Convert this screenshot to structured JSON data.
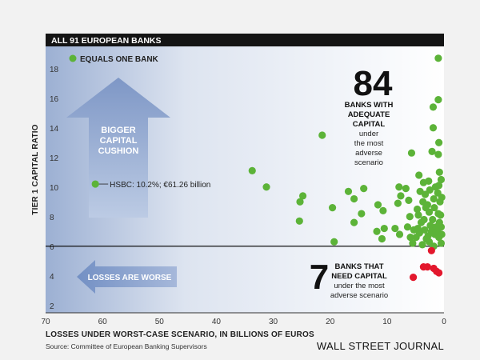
{
  "chart_data": {
    "type": "scatter",
    "title": "ALL 91 EUROPEAN BANKS",
    "ylabel": "TIER 1 CAPITAL RATIO",
    "xlabel": "LOSSES UNDER WORST-CASE SCENARIO, IN BILLIONS OF EUROS",
    "source": "Source: Committee of European Banking Supervisors",
    "brand": "WALL STREET JOURNAL",
    "xlim": [
      70,
      0
    ],
    "ylim": [
      1.5,
      19.5
    ],
    "x_ticks": [
      "70",
      "60",
      "50",
      "40",
      "30",
      "20",
      "10",
      "0"
    ],
    "y_ticks": [
      "2",
      "4",
      "6",
      "8",
      "10",
      "12",
      "14",
      "16",
      "18"
    ],
    "legend": "EQUALS ONE BANK",
    "threshold": 6,
    "colors": {
      "adequate": "#5cb338",
      "need": "#e3182d"
    },
    "arrow_up_label": [
      "BIGGER",
      "CAPITAL",
      "CUSHION"
    ],
    "arrow_left_label": "LOSSES ARE WORSE",
    "highlight": {
      "label": "HSBC: 10.2%; €61.26 billion",
      "x": 61.26,
      "y": 10.2
    },
    "group_adequate": {
      "count": "84",
      "lines": [
        "BANKS WITH",
        "ADEQUATE",
        "CAPITAL"
      ],
      "sublines": [
        "under",
        "the most",
        "adverse",
        "scenario"
      ]
    },
    "group_need": {
      "count": "7",
      "lines": [
        "BANKS THAT",
        "NEED CAPITAL"
      ],
      "sublines": [
        "under the most",
        "adverse scenario"
      ]
    },
    "series": [
      {
        "name": "Banks with adequate capital",
        "points": [
          [
            61.26,
            10.2
          ],
          [
            33.7,
            11.1
          ],
          [
            31.2,
            10.0
          ],
          [
            21.4,
            13.5
          ],
          [
            24.8,
            9.4
          ],
          [
            25.3,
            9.0
          ],
          [
            25.4,
            7.7
          ],
          [
            19.6,
            8.6
          ],
          [
            19.3,
            6.3
          ],
          [
            16.8,
            9.7
          ],
          [
            15.8,
            9.2
          ],
          [
            14.1,
            9.9
          ],
          [
            15.8,
            7.6
          ],
          [
            14.5,
            8.2
          ],
          [
            11.6,
            8.8
          ],
          [
            10.7,
            8.4
          ],
          [
            11.8,
            7.0
          ],
          [
            10.9,
            6.5
          ],
          [
            10.5,
            7.2
          ],
          [
            7.9,
            10.0
          ],
          [
            7.6,
            9.4
          ],
          [
            8.1,
            8.9
          ],
          [
            8.6,
            7.2
          ],
          [
            7.8,
            6.8
          ],
          [
            6.7,
            9.9
          ],
          [
            6.2,
            9.1
          ],
          [
            6.0,
            8.0
          ],
          [
            6.4,
            7.3
          ],
          [
            5.9,
            6.6
          ],
          [
            5.3,
            7.1
          ],
          [
            5.5,
            6.2
          ],
          [
            4.4,
            10.8
          ],
          [
            4.2,
            9.7
          ],
          [
            4.7,
            8.5
          ],
          [
            4.5,
            8.1
          ],
          [
            4.0,
            7.6
          ],
          [
            4.6,
            7.2
          ],
          [
            4.3,
            6.9
          ],
          [
            4.9,
            6.6
          ],
          [
            3.6,
            10.3
          ],
          [
            3.3,
            9.5
          ],
          [
            3.7,
            9.0
          ],
          [
            3.2,
            8.6
          ],
          [
            3.5,
            7.8
          ],
          [
            3.4,
            7.1
          ],
          [
            3.1,
            6.5
          ],
          [
            3.8,
            6.1
          ],
          [
            2.7,
            10.4
          ],
          [
            2.5,
            9.8
          ],
          [
            2.9,
            8.8
          ],
          [
            2.6,
            8.3
          ],
          [
            2.4,
            7.4
          ],
          [
            2.2,
            7.0
          ],
          [
            2.8,
            6.7
          ],
          [
            2.6,
            6.3
          ],
          [
            1.9,
            15.4
          ],
          [
            1.9,
            14.0
          ],
          [
            2.1,
            12.4
          ],
          [
            1.5,
            10.0
          ],
          [
            1.8,
            9.2
          ],
          [
            1.7,
            8.6
          ],
          [
            2.0,
            7.8
          ],
          [
            1.4,
            7.3
          ],
          [
            1.6,
            6.8
          ],
          [
            1.8,
            6.0
          ],
          [
            1.0,
            18.7
          ],
          [
            1.0,
            15.9
          ],
          [
            0.9,
            13.0
          ],
          [
            1.0,
            12.2
          ],
          [
            0.8,
            11.0
          ],
          [
            0.9,
            10.1
          ],
          [
            1.1,
            9.6
          ],
          [
            0.7,
            9.0
          ],
          [
            1.0,
            8.2
          ],
          [
            0.8,
            7.6
          ],
          [
            1.1,
            7.0
          ],
          [
            0.9,
            6.6
          ],
          [
            0.5,
            10.5
          ],
          [
            0.4,
            9.3
          ],
          [
            0.6,
            8.1
          ],
          [
            0.5,
            7.3
          ],
          [
            0.4,
            6.8
          ],
          [
            0.5,
            6.2
          ],
          [
            5.7,
            12.3
          ]
        ]
      },
      {
        "name": "Banks that need capital",
        "points": [
          [
            2.2,
            5.7
          ],
          [
            5.4,
            3.9
          ],
          [
            2.9,
            4.6
          ],
          [
            1.8,
            4.5
          ],
          [
            1.3,
            4.3
          ],
          [
            0.9,
            4.2
          ],
          [
            3.6,
            4.6
          ]
        ]
      }
    ]
  }
}
